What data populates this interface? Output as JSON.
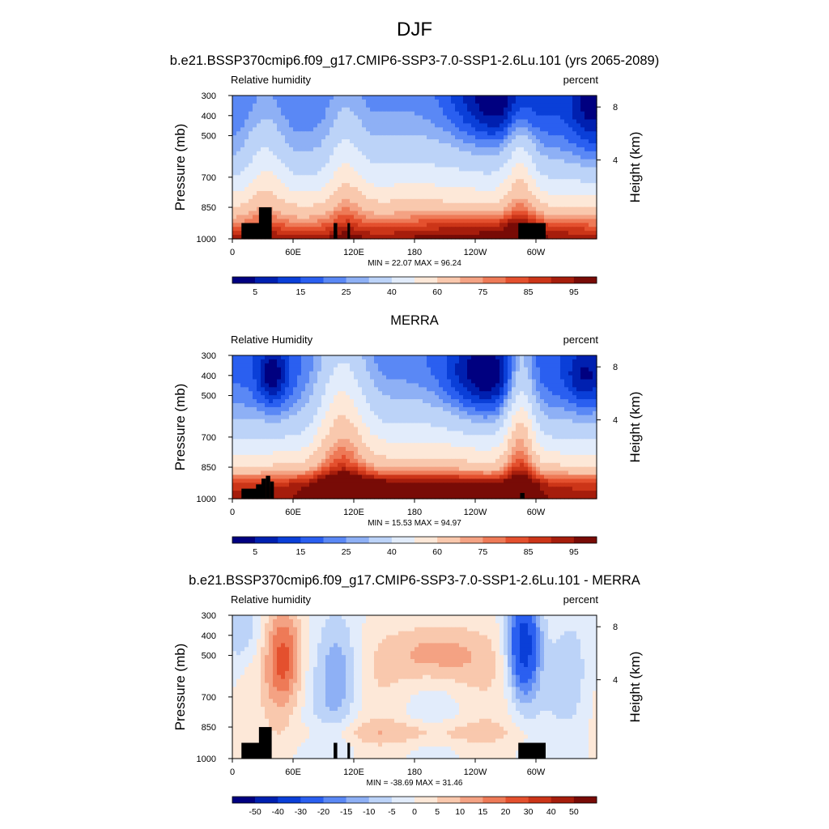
{
  "title": "DJF",
  "chart_data": [
    {
      "type": "heatmap",
      "panel_title": "b.e21.BSSP370cmip6.f09_g17.CMIP6-SSP3-7.0-SSP1-2.6Lu.101 (yrs 2065-2089)",
      "left_label": "Relative humidity",
      "right_label": "percent",
      "ylabel": "Pressure (mb)",
      "y2label": "Height (km)",
      "yticks": [
        "300",
        "400",
        "500",
        "700",
        "850",
        "1000"
      ],
      "y2ticks": [
        "8",
        "4"
      ],
      "xticks": [
        "0",
        "60E",
        "120E",
        "180",
        "120W",
        "60W"
      ],
      "stats": "MIN = 22.07  MAX = 96.24",
      "colorbar_labels": [
        "5",
        "15",
        "25",
        "40",
        "60",
        "75",
        "85",
        "95"
      ]
    },
    {
      "type": "heatmap",
      "panel_title": "MERRA",
      "left_label": "Relative Humidity",
      "right_label": "percent",
      "ylabel": "Pressure (mb)",
      "y2label": "Height (km)",
      "yticks": [
        "300",
        "400",
        "500",
        "700",
        "850",
        "1000"
      ],
      "y2ticks": [
        "8",
        "4"
      ],
      "xticks": [
        "0",
        "60E",
        "120E",
        "180",
        "120W",
        "60W"
      ],
      "stats": "MIN = 15.53  MAX = 94.97",
      "colorbar_labels": [
        "5",
        "15",
        "25",
        "40",
        "60",
        "75",
        "85",
        "95"
      ]
    },
    {
      "type": "heatmap",
      "panel_title": "b.e21.BSSP370cmip6.f09_g17.CMIP6-SSP3-7.0-SSP1-2.6Lu.101 - MERRA",
      "left_label": "Relative humidity",
      "right_label": "percent",
      "ylabel": "Pressure (mb)",
      "y2label": "Height (km)",
      "yticks": [
        "300",
        "400",
        "500",
        "700",
        "850",
        "1000"
      ],
      "y2ticks": [
        "8",
        "4"
      ],
      "xticks": [
        "0",
        "60E",
        "120E",
        "180",
        "120W",
        "60W"
      ],
      "stats": "MIN = -38.69  MAX = 31.46",
      "colorbar_labels": [
        "-50",
        "-40",
        "-30",
        "-20",
        "-15",
        "-10",
        "-5",
        "0",
        "5",
        "10",
        "15",
        "20",
        "30",
        "40",
        "50"
      ]
    }
  ],
  "colors": {
    "palette": [
      "#000080",
      "#0020b0",
      "#0a3fd8",
      "#2a5ff0",
      "#5a88f5",
      "#8eb0f5",
      "#bcd3f8",
      "#e2ecfb",
      "#fde8d8",
      "#f9c8ad",
      "#f4a283",
      "#ee7a57",
      "#e4502e",
      "#cc3518",
      "#a61d0c",
      "#780b06"
    ],
    "terrain": "#000000"
  }
}
